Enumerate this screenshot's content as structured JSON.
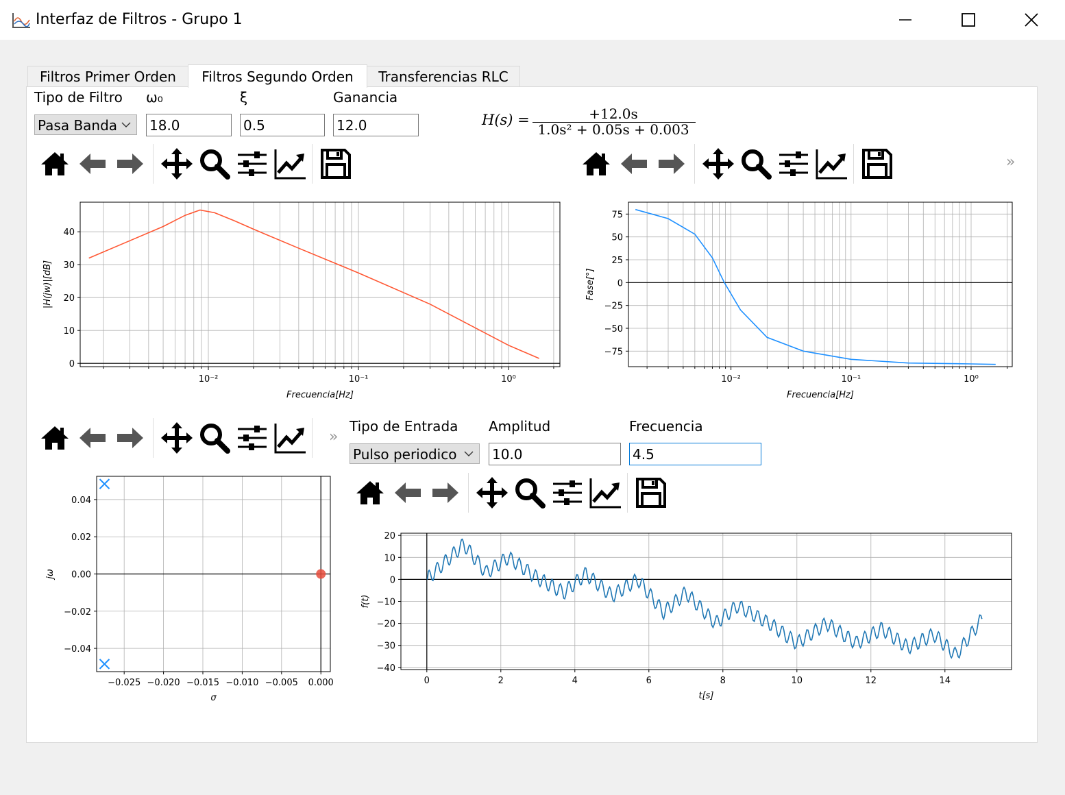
{
  "window": {
    "title": "Interfaz de Filtros - Grupo 1",
    "icon": "chart-app-icon",
    "controls": [
      "minimize-icon",
      "maximize-icon",
      "close-icon"
    ]
  },
  "tabs": [
    {
      "label": "Filtros Primer Orden",
      "active": false
    },
    {
      "label": "Filtros Segundo Orden",
      "active": true
    },
    {
      "label": "Transferencias RLC",
      "active": false
    }
  ],
  "filter_params": {
    "type_label": "Tipo de Filtro",
    "type_value": "Pasa Banda",
    "w0_label": "ω₀",
    "w0_value": "18.0",
    "xi_label": "ξ",
    "xi_value": "0.5",
    "gain_label": "Ganancia",
    "gain_value": "12.0"
  },
  "transfer_function": {
    "lhs": "H(s) =",
    "numerator": "+12.0s",
    "denominator": "1.0s² + 0.05s + 0.003"
  },
  "toolbar_icons": [
    "home-icon",
    "back-arrow-icon",
    "forward-arrow-icon",
    "pan-icon",
    "zoom-icon",
    "subplots-icon",
    "edit-axis-icon",
    "save-icon"
  ],
  "more_glyph": "»",
  "input_params": {
    "type_label": "Tipo de Entrada",
    "type_value": "Pulso periodico",
    "amp_label": "Amplitud",
    "amp_value": "10.0",
    "freq_label": "Frecuencia",
    "freq_value": "4.5"
  },
  "chart_data": [
    {
      "type": "line",
      "id": "magnitude",
      "xlabel": "Frecuencia[Hz]",
      "ylabel": "|H(jw)|[dB]",
      "xscale": "log",
      "xlim": [
        0.0014,
        2.2
      ],
      "ylim": [
        -1,
        49
      ],
      "xticks": [
        "10⁻²",
        "10⁻¹",
        "10⁰"
      ],
      "yticks": [
        "0",
        "10",
        "20",
        "30",
        "40"
      ],
      "color": "#ff5733",
      "x": [
        0.0016,
        0.003,
        0.005,
        0.007,
        0.0088,
        0.011,
        0.015,
        0.02,
        0.04,
        0.1,
        0.3,
        1.0,
        1.6
      ],
      "y": [
        32.0,
        37.3,
        41.6,
        45.0,
        46.6,
        45.8,
        43.3,
        40.8,
        35.0,
        27.5,
        18.0,
        5.5,
        1.5
      ]
    },
    {
      "type": "line",
      "id": "phase",
      "xlabel": "Frecuencia[Hz]",
      "ylabel": "Fase[°]",
      "xscale": "log",
      "xlim": [
        0.0014,
        2.2
      ],
      "ylim": [
        -92,
        88
      ],
      "xticks": [
        "10⁻²",
        "10⁻¹",
        "10⁰"
      ],
      "yticks": [
        "75",
        "50",
        "25",
        "0",
        "−25",
        "−50",
        "−75"
      ],
      "color": "#1e90ff",
      "x": [
        0.0016,
        0.003,
        0.005,
        0.007,
        0.0088,
        0.012,
        0.02,
        0.04,
        0.1,
        0.3,
        1.0,
        1.6
      ],
      "y": [
        80.0,
        70.0,
        53.0,
        27.0,
        0.0,
        -30.0,
        -60.0,
        -75.0,
        -84.0,
        -88.0,
        -89.0,
        -89.5
      ]
    },
    {
      "type": "scatter",
      "id": "poles-zeros",
      "xlabel": "σ",
      "ylabel": "jω",
      "xlim": [
        -0.0285,
        0.0012
      ],
      "ylim": [
        -0.0525,
        0.0525
      ],
      "xticks": [
        "−0.025",
        "−0.020",
        "−0.015",
        "−0.010",
        "−0.005",
        "0.000"
      ],
      "yticks": [
        "0.04",
        "0.02",
        "0.00",
        "−0.02",
        "−0.04"
      ],
      "poles": [
        {
          "x": -0.0275,
          "y": 0.0484
        },
        {
          "x": -0.0275,
          "y": -0.0484
        }
      ],
      "zeros": [
        {
          "x": 0.0,
          "y": 0.0
        }
      ],
      "pole_color": "#1e90ff",
      "zero_color": "#e74c3c"
    },
    {
      "type": "line",
      "id": "time-response",
      "xlabel": "t[s]",
      "ylabel": "f(t)",
      "xlim": [
        -0.7,
        15.8
      ],
      "ylim": [
        -41,
        21
      ],
      "xticks": [
        "0",
        "2",
        "4",
        "6",
        "8",
        "10",
        "12",
        "14"
      ],
      "yticks": [
        "20",
        "10",
        "0",
        "−10",
        "−20",
        "−30",
        "−40"
      ],
      "color": "#1f77b4",
      "x": [
        0,
        0.5,
        1.0,
        1.6,
        2.2,
        3.0,
        3.7,
        4.3,
        5.0,
        5.7,
        6.4,
        7.0,
        7.8,
        8.4,
        9.3,
        10.0,
        10.8,
        11.6,
        12.3,
        13.0,
        13.7,
        14.3,
        15.0
      ],
      "y": [
        0,
        8.0,
        16.0,
        3.0,
        10.0,
        0.5,
        -6.0,
        2.5,
        -7.5,
        0.0,
        -15.0,
        -6.0,
        -20.0,
        -12.0,
        -20.5,
        -29.0,
        -20.0,
        -29.0,
        -22.5,
        -31.0,
        -25.0,
        -34.5,
        -18.0
      ]
    }
  ]
}
